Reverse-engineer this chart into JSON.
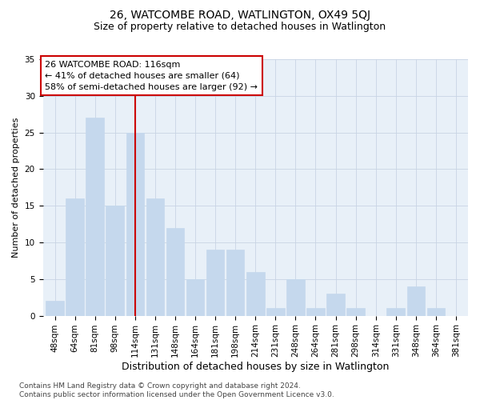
{
  "title1": "26, WATCOMBE ROAD, WATLINGTON, OX49 5QJ",
  "title2": "Size of property relative to detached houses in Watlington",
  "xlabel": "Distribution of detached houses by size in Watlington",
  "ylabel": "Number of detached properties",
  "categories": [
    "48sqm",
    "64sqm",
    "81sqm",
    "98sqm",
    "114sqm",
    "131sqm",
    "148sqm",
    "164sqm",
    "181sqm",
    "198sqm",
    "214sqm",
    "231sqm",
    "248sqm",
    "264sqm",
    "281sqm",
    "298sqm",
    "314sqm",
    "331sqm",
    "348sqm",
    "364sqm",
    "381sqm"
  ],
  "values": [
    2,
    16,
    27,
    15,
    25,
    16,
    12,
    5,
    9,
    9,
    6,
    1,
    5,
    1,
    3,
    1,
    0,
    1,
    4,
    1,
    0
  ],
  "bar_color": "#c5d8ed",
  "bar_edge_color": "#c5d8ed",
  "vline_x_index": 4,
  "vline_color": "#cc0000",
  "annotation_line1": "26 WATCOMBE ROAD: 116sqm",
  "annotation_line2": "← 41% of detached houses are smaller (64)",
  "annotation_line3": "58% of semi-detached houses are larger (92) →",
  "annotation_box_color": "#ffffff",
  "annotation_box_edge": "#cc0000",
  "ylim": [
    0,
    35
  ],
  "yticks": [
    0,
    5,
    10,
    15,
    20,
    25,
    30,
    35
  ],
  "bg_color": "#e8f0f8",
  "footnote": "Contains HM Land Registry data © Crown copyright and database right 2024.\nContains public sector information licensed under the Open Government Licence v3.0.",
  "title1_fontsize": 10,
  "title2_fontsize": 9,
  "xlabel_fontsize": 9,
  "ylabel_fontsize": 8,
  "tick_fontsize": 7.5,
  "annot_fontsize": 8,
  "footnote_fontsize": 6.5
}
